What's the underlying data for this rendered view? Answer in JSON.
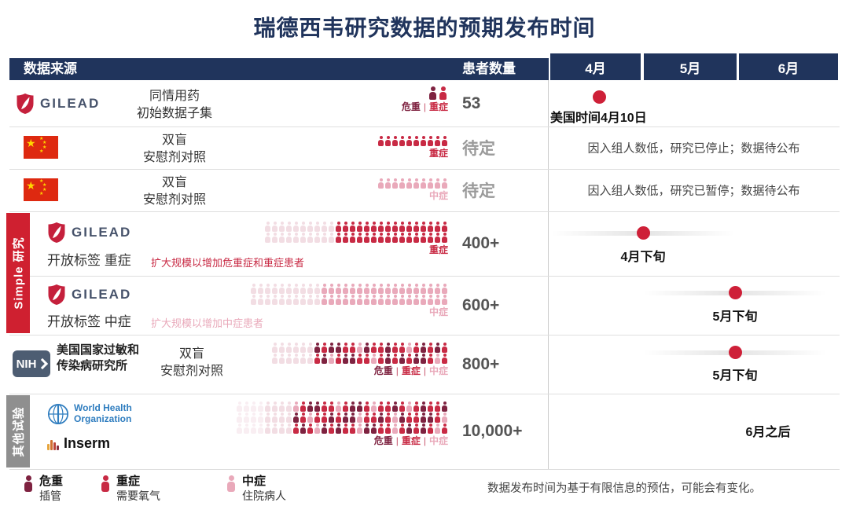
{
  "title": "瑞德西韦研究数据的预期发布时间",
  "colors": {
    "header_navy": "#20345c",
    "timeline_dot": "#ce2038",
    "simple_sidebar_red": "#cf2030",
    "other_sidebar_gray": "#8f8f8f",
    "gilead_red": "#c5203c",
    "who_blue": "#2f7dbf"
  },
  "severity_colors": {
    "c": "#7e2240",
    "s": "#c82a44",
    "m": "#e9a9ba",
    "g": "#f2dde3",
    "h": "#f9eef2"
  },
  "header": {
    "source": "数据来源",
    "patients": "患者数量",
    "months": [
      "4月",
      "5月",
      "6月"
    ]
  },
  "sections": {
    "simple": "Simple 研究",
    "other": "其他试验"
  },
  "rows": [
    {
      "source_name": "GILEAD",
      "study_line1": "同情用药",
      "study_line2": "初始数据子集",
      "icons": [
        "cs"
      ],
      "severity_labels": [
        {
          "text": "危重",
          "key": "c"
        },
        {
          "text": "重症",
          "key": "s"
        }
      ],
      "count": "53",
      "timeline_label": "美国时间4月10日"
    },
    {
      "study_line1": "双盲",
      "study_line2": "安慰剂对照",
      "icons": [
        "ssssssssss"
      ],
      "severity_labels": [
        {
          "text": "重症",
          "key": "s"
        }
      ],
      "count": "待定",
      "timeline_label": "因入组人数低，研究已停止；数据待公布"
    },
    {
      "study_line1": "双盲",
      "study_line2": "安慰剂对照",
      "icons": [
        "mmmmmmmmmm"
      ],
      "severity_labels": [
        {
          "text": "中症",
          "key": "m"
        }
      ],
      "count": "待定",
      "timeline_label": "因入组人数低，研究已暂停；数据待公布"
    },
    {
      "source_name": "GILEAD",
      "study_label": "开放标签 重症",
      "note": "扩大规模以增加危重症和重症患者",
      "icons": [
        "ggggggggggssssssssssssssss",
        "ggggggggggssssssssssssssss"
      ],
      "severity_labels": [
        {
          "text": "重症",
          "key": "s"
        }
      ],
      "count": "400+",
      "timeline_label": "4月下旬"
    },
    {
      "source_name": "GILEAD",
      "study_label": "开放标签 中症",
      "note": "扩大规模以增加中症患者",
      "icons": [
        "ggggggggggmmmmmmmmmmmmmmmmmm",
        "ggggggggggmmmmmmmmmmmmmmmmmm"
      ],
      "severity_labels": [
        {
          "text": "中症",
          "key": "m"
        }
      ],
      "count": "600+",
      "timeline_label": "5月下旬"
    },
    {
      "source_name": "NIH",
      "source_org": "美国国家过敏和传染病研究所",
      "study_line1": "双盲",
      "study_line2": "安慰剂对照",
      "icons": [
        "ggggggcsccssmcsscssmscscs",
        "ggggggscmsccssmscscsccsms"
      ],
      "severity_labels": [
        {
          "text": "危重",
          "key": "c"
        },
        {
          "text": "重症",
          "key": "s"
        },
        {
          "text": "中症",
          "key": "m"
        }
      ],
      "count": "800+",
      "timeline_label": "5月下旬"
    },
    {
      "who_line1": "World Health",
      "who_line2": "Organization",
      "inserm": "Inserm",
      "icons": [
        "hhhhggggmsccssmsccsmsscsmscssc",
        "hhhhggggcsmsscsccmsscsmcssccsm",
        "hhhhggggscsmcscssmccssmscscsms"
      ],
      "severity_labels": [
        {
          "text": "危重",
          "key": "c"
        },
        {
          "text": "重症",
          "key": "s"
        },
        {
          "text": "中症",
          "key": "m"
        }
      ],
      "count": "10,000+",
      "timeline_label": "6月之后"
    }
  ],
  "legend": {
    "items": [
      {
        "key": "c",
        "label": "危重",
        "desc": "插管",
        "icons": [
          "c"
        ]
      },
      {
        "key": "s",
        "label": "重症",
        "desc": "需要氧气",
        "icons": [
          "s"
        ]
      },
      {
        "key": "m",
        "label": "中症",
        "desc": "住院病人",
        "icons": [
          "m"
        ]
      }
    ],
    "note": "数据发布时间为基于有限信息的预估，可能会有变化。"
  }
}
